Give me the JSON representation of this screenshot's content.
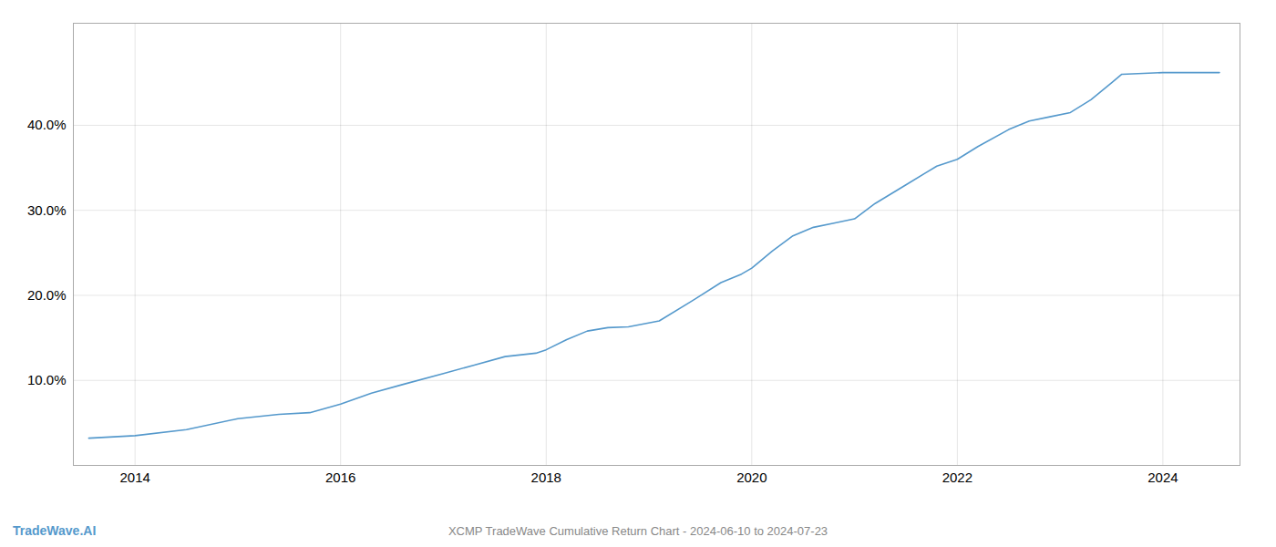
{
  "chart_data": {
    "type": "line",
    "title": "XCMP TradeWave Cumulative Return Chart - 2024-06-10 to 2024-07-23",
    "annotations": [
      {
        "text": "TradeWave.AI"
      }
    ],
    "x": [
      2013.55,
      2014.0,
      2014.5,
      2015.0,
      2015.4,
      2015.7,
      2016.0,
      2016.3,
      2016.6,
      2017.0,
      2017.3,
      2017.6,
      2017.9,
      2018.0,
      2018.2,
      2018.4,
      2018.6,
      2018.8,
      2019.1,
      2019.4,
      2019.7,
      2019.9,
      2020.0,
      2020.2,
      2020.4,
      2020.6,
      2020.8,
      2021.0,
      2021.2,
      2021.5,
      2021.8,
      2022.0,
      2022.2,
      2022.5,
      2022.7,
      2022.9,
      2023.1,
      2023.3,
      2023.5,
      2023.6,
      2024.0,
      2024.3,
      2024.55
    ],
    "values": [
      0.032,
      0.035,
      0.042,
      0.055,
      0.06,
      0.062,
      0.072,
      0.085,
      0.095,
      0.108,
      0.118,
      0.128,
      0.132,
      0.136,
      0.148,
      0.158,
      0.162,
      0.163,
      0.17,
      0.192,
      0.215,
      0.225,
      0.232,
      0.252,
      0.27,
      0.28,
      0.285,
      0.29,
      0.308,
      0.33,
      0.352,
      0.36,
      0.375,
      0.395,
      0.405,
      0.41,
      0.415,
      0.43,
      0.45,
      0.46,
      0.462,
      0.462,
      0.462
    ],
    "color": "#5599cc",
    "xlim": [
      2013.4,
      2024.75
    ],
    "xticks": [
      2014,
      2016,
      2018,
      2020,
      2022,
      2024
    ],
    "ylim": [
      0.0,
      0.52
    ],
    "yticks": [
      {
        "value": 0.1,
        "label": "10.0%"
      },
      {
        "value": 0.2,
        "label": "20.0%"
      },
      {
        "value": 0.3,
        "label": "30.0%"
      },
      {
        "value": 0.4,
        "label": "40.0%"
      }
    ],
    "grid": true
  }
}
